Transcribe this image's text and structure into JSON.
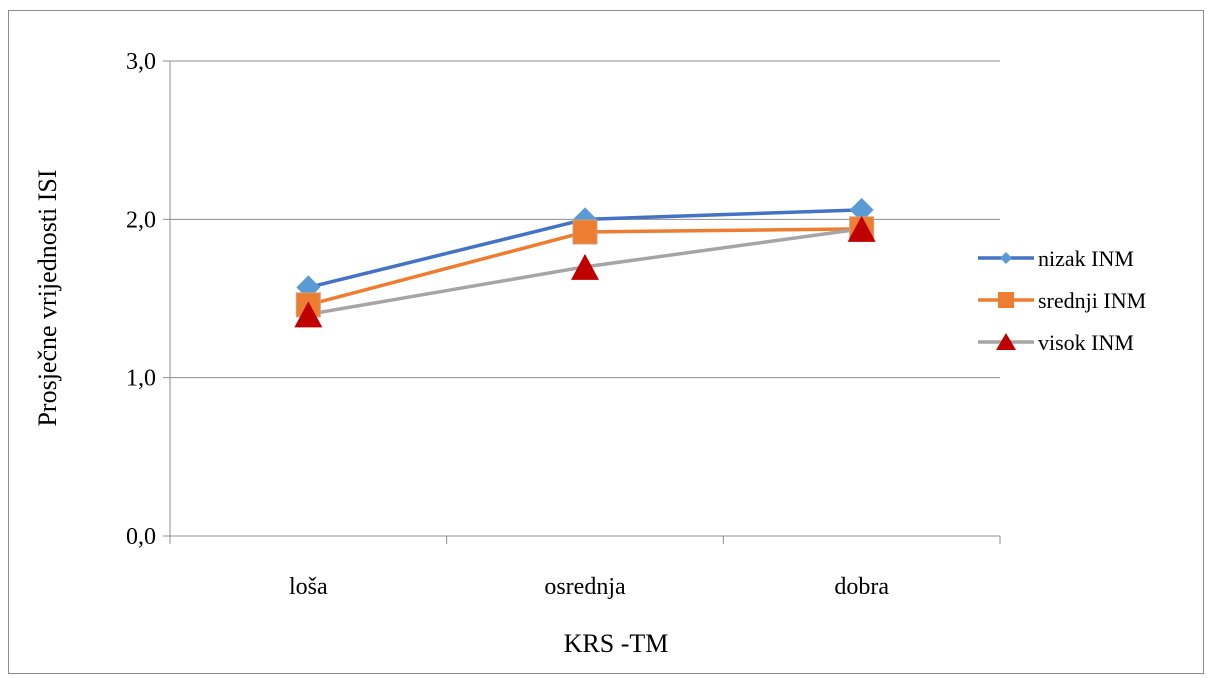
{
  "chart_data": {
    "type": "line",
    "xlabel": "KRS -TM",
    "ylabel": "Prosječne vrijednosti ISI",
    "ylim": [
      0,
      3
    ],
    "yticks": [
      "0,0",
      "1,0",
      "2,0",
      "3,0"
    ],
    "ytick_values": [
      0,
      1,
      2,
      3
    ],
    "categories": [
      "loša",
      "osrednja",
      "dobra"
    ],
    "grid": true,
    "legend_position": "right",
    "series": [
      {
        "name": "nizak INM",
        "values": [
          1.57,
          2.0,
          2.06
        ],
        "color": "#4472C4",
        "marker_color": "#5B9BD5",
        "marker": "diamond"
      },
      {
        "name": "srednji INM",
        "values": [
          1.46,
          1.92,
          1.94
        ],
        "color": "#ED7D31",
        "marker_color": "#ED7D31",
        "marker": "square"
      },
      {
        "name": "visok INM",
        "values": [
          1.4,
          1.7,
          1.94
        ],
        "color": "#A5A5A5",
        "marker_color": "#C00000",
        "marker": "triangle"
      }
    ]
  }
}
